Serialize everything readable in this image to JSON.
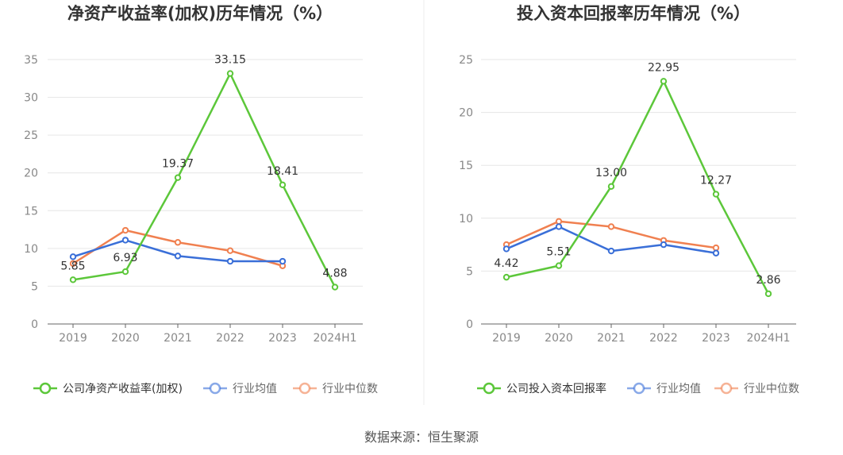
{
  "source": "数据来源：恒生聚源",
  "chart_data": [
    {
      "type": "line",
      "title": "净资产收益率(加权)历年情况（%）",
      "categories": [
        "2019",
        "2020",
        "2021",
        "2022",
        "2023",
        "2024H1"
      ],
      "ylim": [
        0,
        35
      ],
      "yticks": [
        0,
        5,
        10,
        15,
        20,
        25,
        30,
        35
      ],
      "grid": true,
      "legend_position": "bottom",
      "series": [
        {
          "name": "公司净资产收益率(加权)",
          "color": "#5cc73a",
          "values": [
            5.85,
            6.93,
            19.37,
            33.15,
            18.41,
            4.88
          ],
          "data_labels": [
            "5.85",
            "6.93",
            "19.37",
            "33.15",
            "18.41",
            "4.88"
          ]
        },
        {
          "name": "行业均值",
          "color": "#3a6fd8",
          "values": [
            8.9,
            11.1,
            9.0,
            8.3,
            8.3,
            null
          ]
        },
        {
          "name": "行业中位数",
          "color": "#f08050",
          "values": [
            8.0,
            12.4,
            10.8,
            9.7,
            7.7,
            null
          ]
        }
      ]
    },
    {
      "type": "line",
      "title": "投入资本回报率历年情况（%）",
      "categories": [
        "2019",
        "2020",
        "2021",
        "2022",
        "2023",
        "2024H1"
      ],
      "ylim": [
        0,
        25
      ],
      "yticks": [
        0,
        5,
        10,
        15,
        20,
        25
      ],
      "grid": true,
      "legend_position": "bottom",
      "series": [
        {
          "name": "公司投入资本回报率",
          "color": "#5cc73a",
          "values": [
            4.42,
            5.51,
            13.0,
            22.95,
            12.27,
            2.86
          ],
          "data_labels": [
            "4.42",
            "5.51",
            "13.00",
            "22.95",
            "12.27",
            "2.86"
          ]
        },
        {
          "name": "行业均值",
          "color": "#3a6fd8",
          "values": [
            7.1,
            9.2,
            6.9,
            7.5,
            6.7,
            null
          ]
        },
        {
          "name": "行业中位数",
          "color": "#f08050",
          "values": [
            7.5,
            9.7,
            9.2,
            7.9,
            7.2,
            null
          ]
        }
      ]
    }
  ]
}
